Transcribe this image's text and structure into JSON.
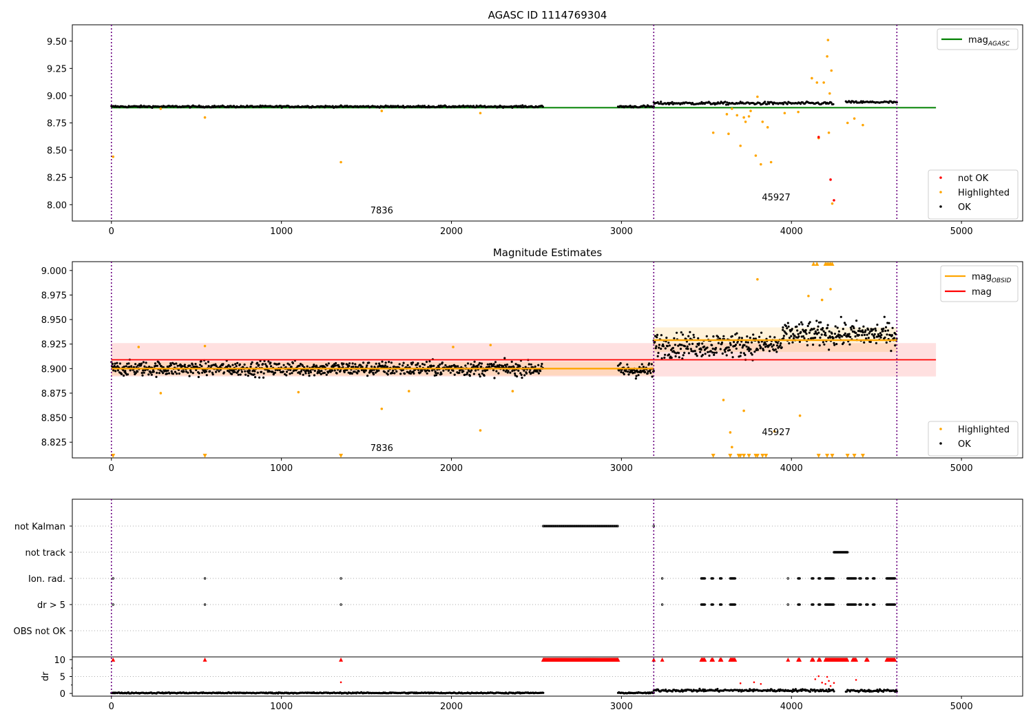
{
  "chart_data": [
    {
      "type": "scatter",
      "title": "AGASC ID 1114769304",
      "xlim": [
        -230,
        5360
      ],
      "ylim": [
        7.85,
        9.65
      ],
      "yticks": [
        "8.00",
        "8.25",
        "8.50",
        "8.75",
        "9.00",
        "9.25",
        "9.50"
      ],
      "xticks": [
        "0",
        "1000",
        "2000",
        "3000",
        "4000",
        "5000"
      ],
      "obs_boundaries": [
        0,
        3190,
        4620
      ],
      "obs_labels": [
        {
          "text": "7836",
          "x": 1590,
          "y": 7.92
        },
        {
          "text": "45927",
          "x": 3910,
          "y": 8.04
        }
      ],
      "agasc_mag": 8.89,
      "agasc_line_xrange": [
        0,
        4850
      ],
      "legend_lines": [
        {
          "label": "mag",
          "subscript": "AGASC",
          "color": "#008000"
        }
      ],
      "legend_points": [
        {
          "label": "not OK",
          "color": "#ff0000"
        },
        {
          "label": "Highlighted",
          "color": "#ffa500"
        },
        {
          "label": "OK",
          "color": "#000000"
        }
      ],
      "ok_segments": [
        {
          "x": [
            0,
            2540
          ],
          "level": 8.9,
          "scatter": 0.008
        },
        {
          "x": [
            2980,
            3190
          ],
          "level": 8.9,
          "scatter": 0.01
        },
        {
          "x": [
            3190,
            4250
          ],
          "level": 8.93,
          "scatter": 0.012
        },
        {
          "x": [
            4320,
            4620
          ],
          "level": 8.94,
          "scatter": 0.01
        }
      ],
      "highlighted": [
        [
          10,
          8.44
        ],
        [
          550,
          8.8
        ],
        [
          1350,
          8.39
        ],
        [
          1590,
          8.86
        ],
        [
          2170,
          8.84
        ],
        [
          290,
          8.88
        ],
        [
          3540,
          8.66
        ],
        [
          3620,
          8.83
        ],
        [
          3630,
          8.65
        ],
        [
          3650,
          8.88
        ],
        [
          3680,
          8.82
        ],
        [
          3700,
          8.54
        ],
        [
          3720,
          8.8
        ],
        [
          3730,
          8.76
        ],
        [
          3750,
          8.81
        ],
        [
          3760,
          8.86
        ],
        [
          3790,
          8.45
        ],
        [
          3800,
          8.99
        ],
        [
          3820,
          8.37
        ],
        [
          3830,
          8.76
        ],
        [
          3860,
          8.71
        ],
        [
          3880,
          8.39
        ],
        [
          3960,
          8.84
        ],
        [
          4040,
          8.85
        ],
        [
          4120,
          9.16
        ],
        [
          4150,
          9.12
        ],
        [
          4160,
          8.61
        ],
        [
          4190,
          9.12
        ],
        [
          4210,
          9.36
        ],
        [
          4215,
          9.51
        ],
        [
          4220,
          8.66
        ],
        [
          4225,
          9.02
        ],
        [
          4235,
          9.23
        ],
        [
          4240,
          8.01
        ],
        [
          4330,
          8.75
        ],
        [
          4370,
          8.79
        ],
        [
          4420,
          8.73
        ]
      ],
      "not_ok": [
        [
          4160,
          8.62
        ],
        [
          4230,
          8.23
        ],
        [
          4250,
          8.04
        ]
      ]
    },
    {
      "type": "scatter",
      "title": "Magnitude Estimates",
      "xlim": [
        -230,
        5360
      ],
      "ylim": [
        8.809,
        9.009
      ],
      "yticks": [
        "8.825",
        "8.850",
        "8.875",
        "8.900",
        "8.925",
        "8.950",
        "8.975",
        "9.000"
      ],
      "xticks": [
        "0",
        "1000",
        "2000",
        "3000",
        "4000",
        "5000"
      ],
      "obs_boundaries": [
        0,
        3190,
        4620
      ],
      "obs_labels": [
        {
          "text": "7836",
          "x": 1590,
          "y": 8.816
        },
        {
          "text": "45927",
          "x": 3910,
          "y": 8.832
        }
      ],
      "mag": 8.909,
      "mag_band": [
        8.892,
        8.926
      ],
      "mag_xrange": [
        0,
        4850
      ],
      "mag_obsid": [
        {
          "x": [
            0,
            3190
          ],
          "value": 8.9,
          "band": [
            8.893,
            8.907
          ]
        },
        {
          "x": [
            3190,
            4620
          ],
          "value": 8.929,
          "band": [
            8.917,
            8.942
          ]
        }
      ],
      "legend_lines": [
        {
          "label": "mag",
          "subscript": "OBSID",
          "color": "#ffa500"
        },
        {
          "label": "mag",
          "subscript": "",
          "color": "#ff0000"
        }
      ],
      "legend_points": [
        {
          "label": "Highlighted",
          "color": "#ffa500"
        },
        {
          "label": "OK",
          "color": "#000000"
        }
      ],
      "ok_segments": [
        {
          "x": [
            0,
            2540
          ],
          "level": 8.9,
          "scatter": 0.007
        },
        {
          "x": [
            2980,
            3190
          ],
          "level": 8.898,
          "scatter": 0.007
        },
        {
          "x": [
            3190,
            3950
          ],
          "level": 8.924,
          "scatter": 0.012
        },
        {
          "x": [
            3950,
            4620
          ],
          "level": 8.935,
          "scatter": 0.012
        }
      ],
      "highlighted": [
        [
          160,
          8.922
        ],
        [
          290,
          8.875
        ],
        [
          550,
          8.923
        ],
        [
          1100,
          8.876
        ],
        [
          1590,
          8.859
        ],
        [
          1750,
          8.877
        ],
        [
          2170,
          8.837
        ],
        [
          2360,
          8.877
        ],
        [
          2230,
          8.924
        ],
        [
          2010,
          8.922
        ],
        [
          3600,
          8.868
        ],
        [
          3640,
          8.835
        ],
        [
          3650,
          8.82
        ],
        [
          3720,
          8.857
        ],
        [
          3800,
          8.991
        ],
        [
          3900,
          8.836
        ],
        [
          4050,
          8.852
        ],
        [
          4100,
          8.974
        ],
        [
          4180,
          8.97
        ],
        [
          4230,
          8.981
        ]
      ],
      "clipped_high": [
        4130,
        4150,
        4200,
        4210,
        4220,
        4230,
        4240
      ],
      "clipped_low": [
        10,
        550,
        1350,
        3540,
        3640,
        3690,
        3700,
        3720,
        3750,
        3790,
        3800,
        3830,
        3850,
        4160,
        4210,
        4240,
        4330,
        4370,
        4420
      ]
    },
    {
      "type": "scatter",
      "title": "",
      "xlim": [
        -230,
        5360
      ],
      "xticks": [
        "0",
        "1000",
        "2000",
        "3000",
        "4000",
        "5000"
      ],
      "obs_boundaries": [
        0,
        3190,
        4620
      ],
      "flag_labels": [
        "not Kalman",
        "not track",
        "Ion. rad.",
        "dr > 5",
        "OBS not OK"
      ],
      "flags": {
        "not Kalman": [
          [
            2540,
            2980
          ],
          [
            3190,
            3190
          ]
        ],
        "not track": [
          [
            4250,
            4330
          ]
        ],
        "Ion. rad.": [
          [
            10,
            10
          ],
          [
            550,
            550
          ],
          [
            1350,
            1350
          ],
          [
            3240,
            3240
          ],
          [
            3470,
            3490
          ],
          [
            3530,
            3540
          ],
          [
            3580,
            3590
          ],
          [
            3640,
            3670
          ],
          [
            3980,
            3980
          ],
          [
            4040,
            4050
          ],
          [
            4120,
            4130
          ],
          [
            4160,
            4170
          ],
          [
            4200,
            4250
          ],
          [
            4330,
            4380
          ],
          [
            4400,
            4410
          ],
          [
            4440,
            4450
          ],
          [
            4480,
            4490
          ],
          [
            4560,
            4610
          ]
        ],
        "dr > 5": [
          [
            10,
            10
          ],
          [
            550,
            550
          ],
          [
            1350,
            1350
          ],
          [
            3240,
            3240
          ],
          [
            3470,
            3490
          ],
          [
            3530,
            3540
          ],
          [
            3580,
            3590
          ],
          [
            3640,
            3670
          ],
          [
            3980,
            3980
          ],
          [
            4040,
            4050
          ],
          [
            4120,
            4130
          ],
          [
            4160,
            4170
          ],
          [
            4200,
            4250
          ],
          [
            4330,
            4380
          ],
          [
            4400,
            4410
          ],
          [
            4440,
            4450
          ],
          [
            4480,
            4490
          ],
          [
            4560,
            4610
          ]
        ],
        "OBS not OK": []
      },
      "dr_panel": {
        "ylabel": "dr",
        "ylim": [
          -0.8,
          10.8
        ],
        "yticks": [
          "0",
          "5",
          "10"
        ],
        "clipped_top": [
          [
            10,
            10
          ],
          [
            550,
            550
          ],
          [
            1350,
            1350
          ],
          [
            2540,
            2980
          ],
          [
            3190,
            3190
          ],
          [
            3240,
            3240
          ],
          [
            3470,
            3490
          ],
          [
            3530,
            3540
          ],
          [
            3580,
            3590
          ],
          [
            3640,
            3670
          ],
          [
            3980,
            3980
          ],
          [
            4040,
            4050
          ],
          [
            4120,
            4130
          ],
          [
            4160,
            4170
          ],
          [
            4200,
            4330
          ],
          [
            4360,
            4380
          ],
          [
            4440,
            4450
          ],
          [
            4560,
            4610
          ]
        ],
        "red_points": [
          [
            1350,
            3.3
          ],
          [
            3700,
            3.0
          ],
          [
            3780,
            3.3
          ],
          [
            3820,
            2.8
          ],
          [
            4160,
            5.1
          ],
          [
            4180,
            3.2
          ],
          [
            4200,
            2.8
          ],
          [
            4210,
            4.9
          ],
          [
            4220,
            3.7
          ],
          [
            4230,
            2.2
          ],
          [
            4250,
            3.1
          ],
          [
            4140,
            4.2
          ],
          [
            4380,
            4.0
          ]
        ],
        "ok_segments": [
          {
            "x": [
              0,
              2540
            ],
            "level": 0.15,
            "scatter": 0.15
          },
          {
            "x": [
              2980,
              3190
            ],
            "level": 0.15,
            "scatter": 0.15
          },
          {
            "x": [
              3190,
              4250
            ],
            "level": 0.9,
            "scatter": 0.35
          },
          {
            "x": [
              4320,
              4620
            ],
            "level": 0.8,
            "scatter": 0.35
          }
        ]
      }
    }
  ]
}
